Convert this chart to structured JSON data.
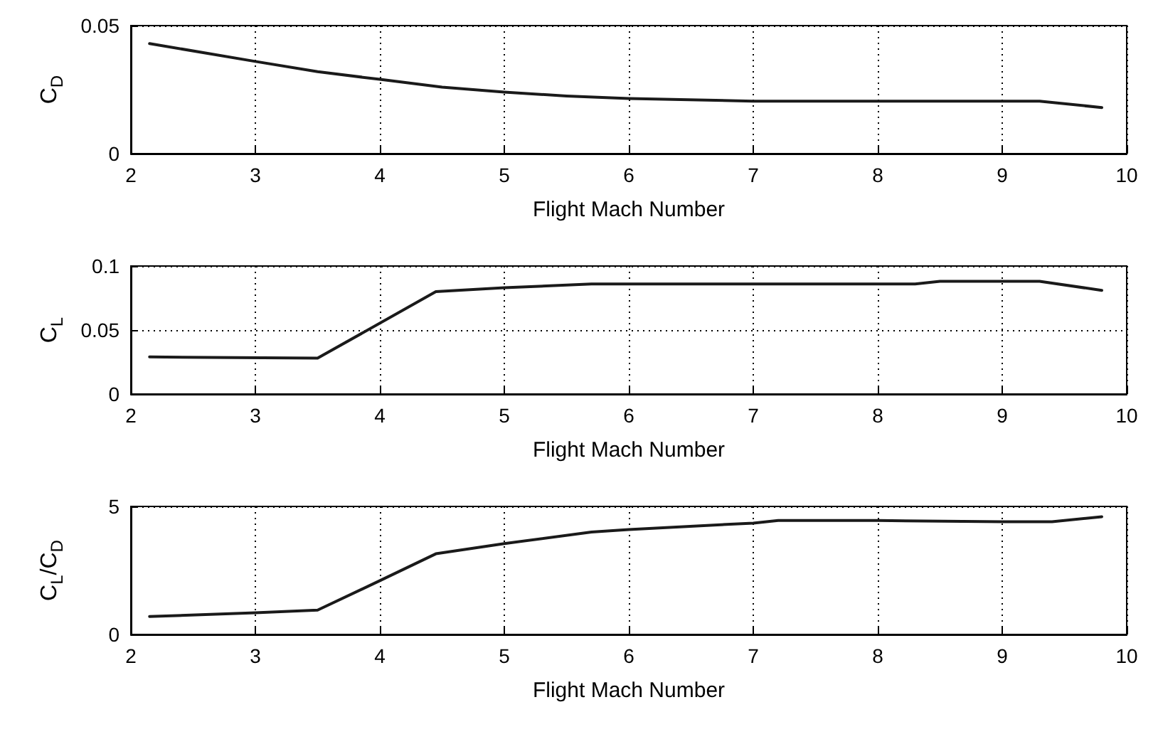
{
  "chart_data": [
    {
      "type": "line",
      "xlabel": "Flight Mach Number",
      "ylabel": "C$_{D}$",
      "xlim": [
        2,
        10
      ],
      "xticks": [
        2,
        3,
        4,
        5,
        6,
        7,
        8,
        9,
        10
      ],
      "ylim": [
        0,
        0.05
      ],
      "yticks": [
        0,
        0.05
      ],
      "grid": true,
      "marker": "none",
      "line_style": "solid",
      "series": [
        {
          "color": "#1a1a1a",
          "x": [
            2.15,
            3,
            3.5,
            4,
            4.5,
            5,
            5.5,
            6,
            7,
            8,
            9,
            9.3,
            9.8
          ],
          "values": [
            0.043,
            0.036,
            0.032,
            0.029,
            0.026,
            0.024,
            0.0225,
            0.0215,
            0.0205,
            0.0205,
            0.0205,
            0.0205,
            0.018
          ]
        }
      ]
    },
    {
      "type": "line",
      "xlabel": "Flight Mach Number",
      "ylabel": "C$_{L}$",
      "xlim": [
        2,
        10
      ],
      "xticks": [
        2,
        3,
        4,
        5,
        6,
        7,
        8,
        9,
        10
      ],
      "ylim": [
        0,
        0.1
      ],
      "yticks": [
        0,
        0.05,
        0.1
      ],
      "grid": true,
      "marker": "none",
      "line_style": "solid",
      "series": [
        {
          "color": "#1a1a1a",
          "x": [
            2.15,
            3.5,
            4.45,
            5,
            5.7,
            7,
            8.3,
            8.5,
            9.3,
            9.8
          ],
          "values": [
            0.029,
            0.028,
            0.08,
            0.083,
            0.086,
            0.086,
            0.086,
            0.088,
            0.088,
            0.081
          ]
        }
      ]
    },
    {
      "type": "line",
      "xlabel": "Flight Mach Number",
      "ylabel": "C$_{L}$/C$_{D}$",
      "xlim": [
        2,
        10
      ],
      "xticks": [
        2,
        3,
        4,
        5,
        6,
        7,
        8,
        9,
        10
      ],
      "ylim": [
        0,
        5
      ],
      "yticks": [
        0,
        5
      ],
      "grid": true,
      "marker": "none",
      "line_style": "solid",
      "series": [
        {
          "color": "#1a1a1a",
          "x": [
            2.15,
            3,
            3.5,
            4,
            4.45,
            5,
            5.7,
            6,
            7,
            7.2,
            8,
            9,
            9.4,
            9.8
          ],
          "values": [
            0.7,
            0.85,
            0.95,
            2.1,
            3.15,
            3.55,
            4.0,
            4.1,
            4.35,
            4.45,
            4.45,
            4.4,
            4.4,
            4.6
          ]
        }
      ]
    }
  ]
}
